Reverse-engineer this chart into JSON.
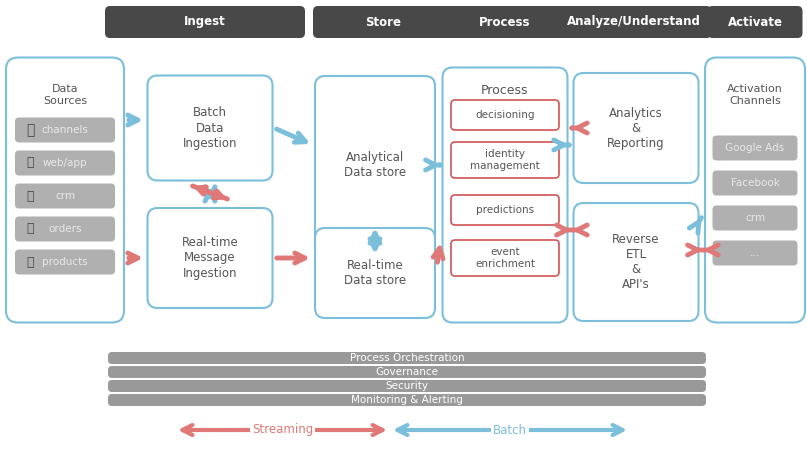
{
  "bg_color": "#ffffff",
  "header_bg": "#484848",
  "header_text_color": "#ffffff",
  "box_blue_edge": "#7bbfdb",
  "box_blue_fill": "#ffffff",
  "box_gray_fill": "#b0b0b0",
  "box_gray_text": "#e8e8e8",
  "box_red_edge": "#d05555",
  "box_red_fill": "#ffffff",
  "arrow_blue": "#7bbfdb",
  "arrow_pink": "#e07878",
  "bottom_bar_color": "#999999",
  "bottom_bar_labels": [
    "Process Orchestration",
    "Governance",
    "Security",
    "Monitoring & Alerting"
  ],
  "streaming_color": "#e07878",
  "batch_color": "#7bbfdb",
  "text_dark": "#555555",
  "text_white": "#ffffff",
  "icon_color": "#555555"
}
